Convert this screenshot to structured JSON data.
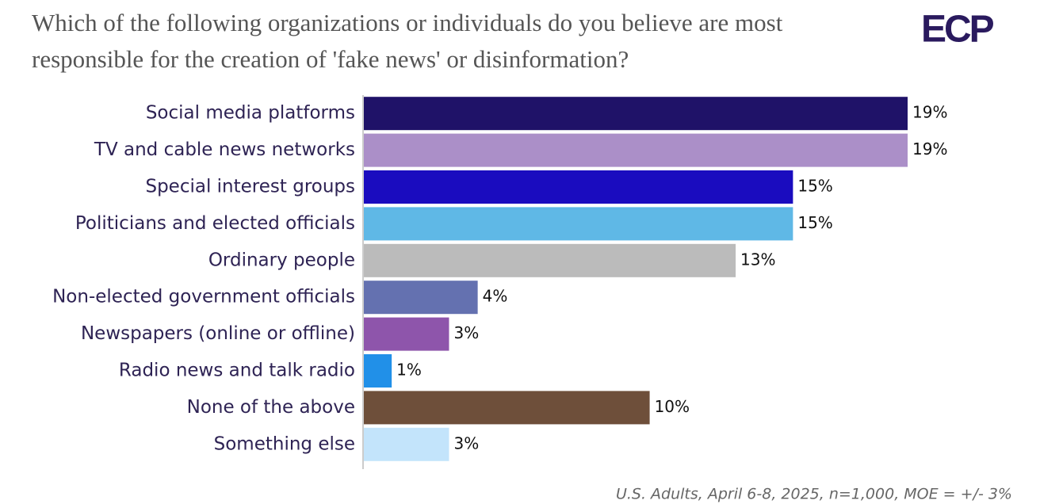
{
  "chart_data": {
    "type": "bar",
    "orientation": "horizontal",
    "title": [
      "Which of the following organizations or individuals do you believe are most",
      "responsible for the creation of 'fake news' or disinformation?"
    ],
    "logo": "ECP",
    "categories": [
      "Social media platforms",
      "TV and cable news networks",
      "Special interest groups",
      "Politicians and elected officials",
      "Ordinary people",
      "Non-elected government officials",
      "Newspapers (online or offline)",
      "Radio news and talk radio",
      "None of the above",
      "Something else"
    ],
    "values": [
      19,
      19,
      15,
      15,
      13,
      4,
      3,
      1,
      10,
      3
    ],
    "value_labels": [
      "19%",
      "19%",
      "15%",
      "15%",
      "13%",
      "4%",
      "3%",
      "1%",
      "10%",
      "3%"
    ],
    "colors": [
      "#1f1268",
      "#ab8fc8",
      "#1a0cbf",
      "#5fb8e6",
      "#bbbbbb",
      "#6471b0",
      "#8e55ab",
      "#2190e8",
      "#6e4f3a",
      "#c3e4fb"
    ],
    "note": "U.S. Adults, April 6-8, 2025, n=1,000, MOE = +/- 3%"
  }
}
